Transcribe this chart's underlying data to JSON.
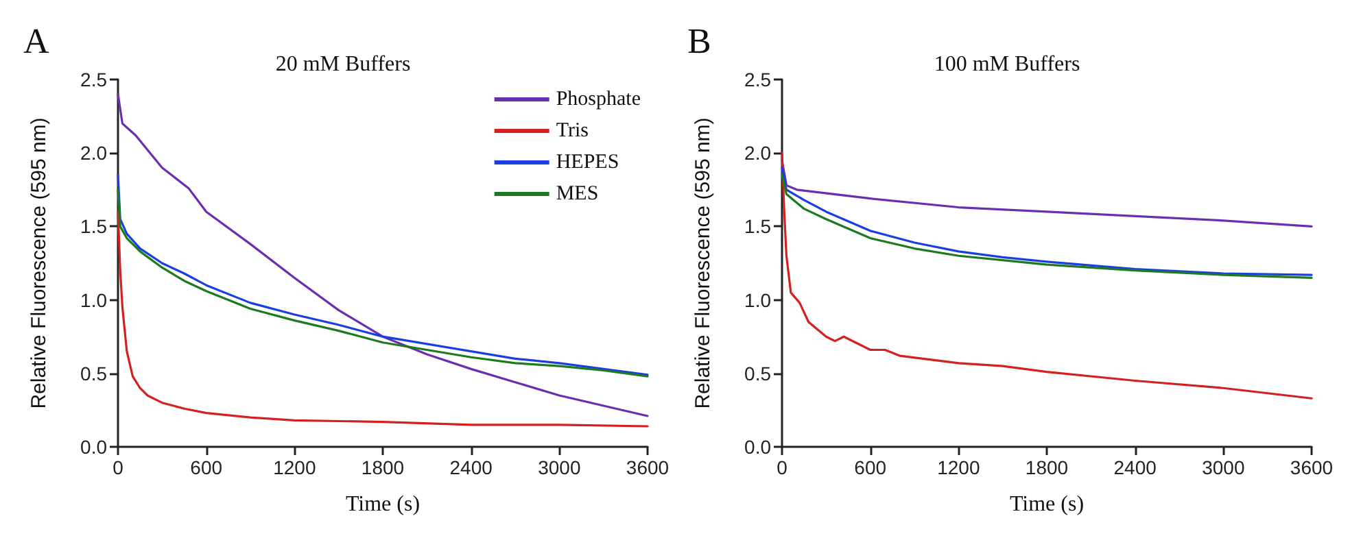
{
  "chart_data": [
    {
      "type": "line",
      "title": "A",
      "subtitle": "20 mM Buffers",
      "xlabel": "Time (s)",
      "ylabel": "Relative Fluorescence (595 nm)",
      "xlim": [
        0,
        3600
      ],
      "xticks": [
        0,
        600,
        1200,
        1800,
        2400,
        3000,
        3600
      ],
      "ylim": [
        0,
        2.5
      ],
      "yticks": [
        {
          "value": 0,
          "label": "0.0"
        },
        0.5,
        {
          "value": 1,
          "label": "1.0"
        },
        1.5,
        {
          "value": 2,
          "label": "2.0"
        },
        2.5
      ],
      "grid": false,
      "legend": "top right",
      "marker": "none",
      "line_style": "solid",
      "series": [
        {
          "name": "Phosphate",
          "color": "#6a2fb0",
          "x": [
            0,
            30,
            120,
            300,
            480,
            600,
            900,
            1200,
            1500,
            1800,
            2100,
            2400,
            2700,
            3000,
            3300,
            3600
          ],
          "values": [
            2.4,
            2.2,
            2.12,
            1.9,
            1.76,
            1.6,
            1.38,
            1.15,
            0.93,
            0.75,
            0.63,
            0.53,
            0.44,
            0.35,
            0.28,
            0.21
          ]
        },
        {
          "name": "Tris",
          "color": "#d42020",
          "x": [
            0,
            15,
            30,
            60,
            100,
            150,
            200,
            300,
            450,
            600,
            900,
            1200,
            1800,
            2400,
            3000,
            3600
          ],
          "values": [
            1.6,
            1.2,
            0.95,
            0.65,
            0.48,
            0.4,
            0.35,
            0.3,
            0.26,
            0.23,
            0.2,
            0.18,
            0.17,
            0.15,
            0.15,
            0.14
          ]
        },
        {
          "name": "HEPES",
          "color": "#1a3fe0",
          "x": [
            0,
            15,
            60,
            150,
            300,
            450,
            600,
            900,
            1200,
            1500,
            1800,
            2100,
            2400,
            2700,
            3000,
            3300,
            3600
          ],
          "values": [
            1.85,
            1.55,
            1.45,
            1.35,
            1.25,
            1.18,
            1.1,
            0.98,
            0.9,
            0.83,
            0.75,
            0.7,
            0.65,
            0.6,
            0.57,
            0.53,
            0.49
          ]
        },
        {
          "name": "MES",
          "color": "#1e7a1e",
          "x": [
            0,
            15,
            60,
            150,
            300,
            450,
            600,
            900,
            1200,
            1500,
            1800,
            2100,
            2400,
            2700,
            3000,
            3300,
            3600
          ],
          "values": [
            1.75,
            1.5,
            1.42,
            1.33,
            1.22,
            1.13,
            1.06,
            0.94,
            0.86,
            0.79,
            0.71,
            0.66,
            0.61,
            0.57,
            0.55,
            0.52,
            0.48
          ]
        }
      ]
    },
    {
      "type": "line",
      "title": "B",
      "subtitle": "100 mM Buffers",
      "xlabel": "Time (s)",
      "ylabel": "Relative Fluorescence (595 nm)",
      "xlim": [
        0,
        3600
      ],
      "xticks": [
        0,
        600,
        1200,
        1800,
        2400,
        3000,
        3600
      ],
      "ylim": [
        0,
        2.5
      ],
      "yticks": [
        {
          "value": 0,
          "label": "0.0"
        },
        0.5,
        {
          "value": 1,
          "label": "1.0"
        },
        1.5,
        {
          "value": 2,
          "label": "2.0"
        },
        2.5
      ],
      "grid": false,
      "marker": "none",
      "line_style": "solid",
      "series": [
        {
          "color": "#6a2fb0",
          "x": [
            0,
            30,
            100,
            600,
            1200,
            1800,
            2400,
            3000,
            3600
          ],
          "values": [
            1.95,
            1.78,
            1.75,
            1.69,
            1.63,
            1.6,
            1.57,
            1.54,
            1.5
          ]
        },
        {
          "color": "#d42020",
          "x": [
            0,
            15,
            30,
            60,
            120,
            180,
            300,
            360,
            420,
            600,
            700,
            800,
            1200,
            1500,
            1800,
            2400,
            3000,
            3600
          ],
          "values": [
            2.0,
            1.6,
            1.3,
            1.05,
            0.98,
            0.85,
            0.75,
            0.72,
            0.75,
            0.66,
            0.66,
            0.62,
            0.57,
            0.55,
            0.51,
            0.45,
            0.4,
            0.33
          ]
        },
        {
          "color": "#1a3fe0",
          "x": [
            0,
            30,
            150,
            300,
            600,
            900,
            1200,
            1500,
            1800,
            2400,
            3000,
            3600
          ],
          "values": [
            1.9,
            1.75,
            1.68,
            1.6,
            1.47,
            1.39,
            1.33,
            1.29,
            1.26,
            1.21,
            1.18,
            1.17
          ]
        },
        {
          "color": "#1e7a1e",
          "x": [
            0,
            30,
            150,
            300,
            600,
            900,
            1200,
            1500,
            1800,
            2400,
            3000,
            3600
          ],
          "values": [
            1.85,
            1.72,
            1.62,
            1.55,
            1.42,
            1.35,
            1.3,
            1.27,
            1.24,
            1.2,
            1.17,
            1.15
          ]
        }
      ]
    }
  ]
}
